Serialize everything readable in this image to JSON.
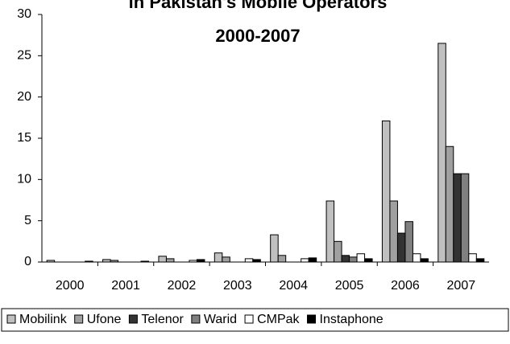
{
  "chart_data": {
    "type": "bar",
    "title": "in Pakistan's Mobile Operators",
    "subtitle": "2000-2007",
    "categories": [
      "2000",
      "2001",
      "2002",
      "2003",
      "2004",
      "2005",
      "2006",
      "2007"
    ],
    "series": [
      {
        "name": "Mobilink",
        "color": "#c0c0c0",
        "values": [
          0.2,
          0.3,
          0.7,
          1.1,
          3.3,
          7.4,
          17.1,
          26.5
        ]
      },
      {
        "name": "Ufone",
        "color": "#a0a0a0",
        "values": [
          0,
          0.2,
          0.4,
          0.6,
          0.8,
          2.5,
          7.4,
          14.0
        ]
      },
      {
        "name": "Telenor",
        "color": "#333333",
        "values": [
          0,
          0,
          0,
          0,
          0,
          0.8,
          3.5,
          10.7
        ]
      },
      {
        "name": "Warid",
        "color": "#808080",
        "values": [
          0,
          0,
          0,
          0,
          0,
          0.6,
          4.9,
          10.7
        ]
      },
      {
        "name": "CMPak",
        "color": "#ffffff",
        "values": [
          0,
          0,
          0.2,
          0.4,
          0.4,
          1.0,
          1.0,
          1.0
        ]
      },
      {
        "name": "Instaphone",
        "color": "#000000",
        "values": [
          0.1,
          0.1,
          0.3,
          0.3,
          0.5,
          0.4,
          0.4,
          0.4
        ]
      }
    ],
    "ylim": [
      0,
      30
    ],
    "yticks": [
      0,
      5,
      10,
      15,
      20,
      25,
      30
    ],
    "legend": "bottom"
  }
}
